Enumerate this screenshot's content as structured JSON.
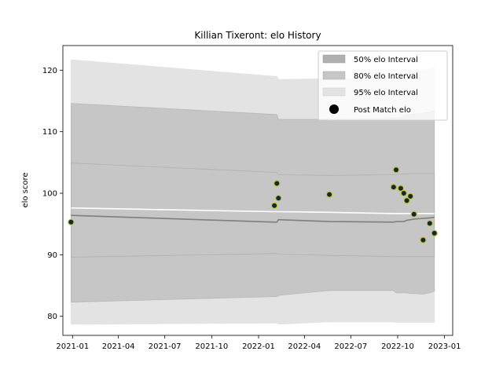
{
  "chart_data": {
    "type": "line",
    "title": "Killian Tixeront: elo History",
    "xlabel": "",
    "ylabel": "elo score",
    "xlim": [
      "2020-12-13",
      "2023-01-17"
    ],
    "ylim": [
      76.9,
      124.0
    ],
    "x_ticks": [
      "2021-01-01",
      "2021-04-01",
      "2021-07-01",
      "2021-10-01",
      "2022-01-01",
      "2022-04-01",
      "2022-07-01",
      "2022-10-01",
      "2023-01-01"
    ],
    "x_tick_labels": [
      "2021-01",
      "2021-04",
      "2021-07",
      "2021-10",
      "2022-01",
      "2022-04",
      "2022-07",
      "2022-10",
      "2023-01"
    ],
    "y_ticks": [
      80,
      90,
      100,
      110,
      120
    ],
    "grid": false,
    "legend": {
      "placement": "top-right",
      "entries": [
        "50% elo Interval",
        "80% elo Interval",
        "95% elo Interval",
        "Post Match elo"
      ]
    },
    "colors": {
      "band50": "#b0b0b0",
      "band80": "#c6c6c6",
      "band95": "#e3e3e3",
      "mean_line": "#ffffff",
      "median_line": "#7f7f7f",
      "point_fill": "#0d2a3f",
      "point_edge": "#c8c32a"
    },
    "x": [
      "2020-12-29",
      "2022-02-01",
      "2022-02-06",
      "2022-02-09",
      "2022-05-20",
      "2022-09-23",
      "2022-09-28",
      "2022-10-07",
      "2022-10-13",
      "2022-10-19",
      "2022-10-26",
      "2022-11-02",
      "2022-11-20",
      "2022-12-03",
      "2022-12-12"
    ],
    "bands": {
      "upper95": [
        121.7,
        119.0,
        119.0,
        118.5,
        118.6,
        118.8,
        119.0,
        119.2,
        119.4,
        119.5,
        119.6,
        119.8,
        120.0,
        120.2,
        120.4
      ],
      "upper80": [
        114.6,
        112.8,
        112.8,
        112.0,
        112.0,
        112.2,
        112.3,
        112.4,
        112.6,
        112.7,
        112.8,
        112.9,
        113.0,
        113.2,
        113.4
      ],
      "upper50": [
        104.9,
        103.4,
        103.4,
        103.0,
        102.9,
        103.0,
        103.0,
        103.1,
        103.1,
        103.1,
        103.2,
        103.2,
        103.2,
        103.2,
        103.2
      ],
      "lower50": [
        89.6,
        90.2,
        90.2,
        90.1,
        89.9,
        89.7,
        89.7,
        89.7,
        89.7,
        89.7,
        89.7,
        89.7,
        89.7,
        89.7,
        89.7
      ],
      "lower80": [
        82.3,
        83.2,
        83.2,
        83.4,
        84.2,
        84.2,
        83.8,
        83.8,
        83.8,
        83.8,
        83.7,
        83.7,
        83.6,
        83.8,
        84.1
      ],
      "lower95": [
        78.7,
        78.9,
        78.9,
        78.7,
        79.1,
        79.1,
        79.0,
        79.0,
        79.0,
        79.0,
        79.0,
        79.0,
        79.0,
        79.0,
        79.0
      ]
    },
    "series": [
      {
        "name": "mean",
        "values": [
          97.6,
          97.0,
          97.0,
          97.0,
          96.9,
          96.7,
          96.7,
          96.7,
          96.7,
          96.7,
          96.7,
          96.7,
          96.7,
          96.7,
          96.7
        ]
      },
      {
        "name": "median",
        "values": [
          96.4,
          95.3,
          95.3,
          95.7,
          95.4,
          95.3,
          95.4,
          95.4,
          95.4,
          95.6,
          95.7,
          95.8,
          95.9,
          96.0,
          96.1
        ]
      },
      {
        "name": "Post Match elo",
        "values": [
          95.3,
          98.0,
          101.6,
          99.2,
          99.8,
          101.0,
          103.8,
          100.8,
          100.0,
          98.8,
          99.5,
          96.6,
          92.4,
          95.1,
          93.5
        ]
      }
    ]
  }
}
